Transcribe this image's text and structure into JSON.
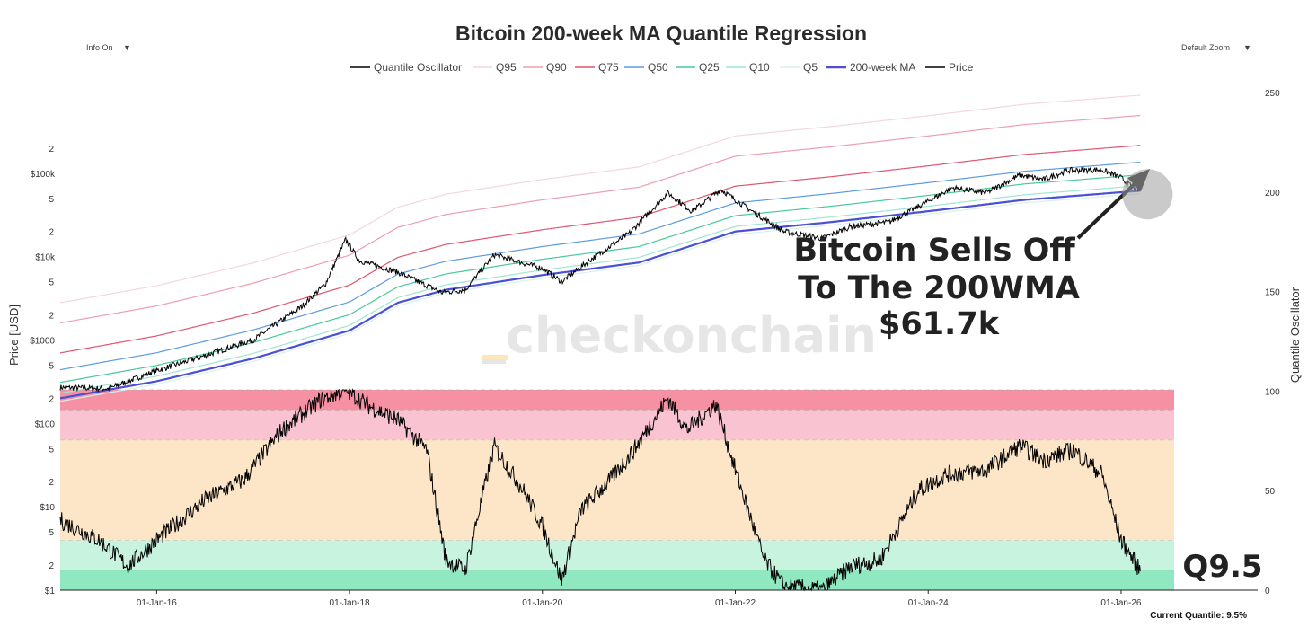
{
  "controls": {
    "info_label": "Info On",
    "zoom_label": "Default Zoom"
  },
  "annotation": {
    "line1": "Bitcoin Sells Off",
    "line2": "To The 200WMA",
    "line3": "$61.7k"
  },
  "watermark": "_checkonchain",
  "current": {
    "quantile_label": "Q9.5",
    "readout": "Current Quantile: 9.5%"
  },
  "colors": {
    "Q95": "#f3d6de",
    "Q90": "#ec9eaf",
    "Q75": "#e0566f",
    "Q50": "#5b9be0",
    "Q25": "#48c99a",
    "Q10": "#9fe6d2",
    "Q5": "#d8f2ea",
    "ma": "#4a4fd6",
    "price": "#000000",
    "zone_top": "#f591a3",
    "zone_high": "#f9c3d1",
    "zone_mid": "#fde6c7",
    "zone_low": "#c8f3df",
    "zone_bottom": "#8fe8bf",
    "highlight": "#9e9e9e"
  },
  "chart_data": {
    "type": "line",
    "title": "Bitcoin 200-week MA Quantile Regression",
    "ylabel": "Price [USD]",
    "y2label": "Quantile Oscillator",
    "yscale": "log",
    "ylim": [
      1,
      1000000
    ],
    "y2lim": [
      0,
      250
    ],
    "x_ticks": [
      "01-Jan-16",
      "01-Jan-18",
      "01-Jan-20",
      "01-Jan-22",
      "01-Jan-24",
      "01-Jan-26"
    ],
    "y_ticks": [
      "$1",
      "2",
      "5",
      "$10",
      "2",
      "5",
      "$100",
      "2",
      "5",
      "$1000",
      "2",
      "5",
      "$10k",
      "2",
      "5",
      "$100k",
      "2"
    ],
    "y2_ticks": [
      "0",
      "50",
      "100",
      "150",
      "200",
      "250"
    ],
    "legend": [
      "Quantile Oscillator",
      "Q95",
      "Q90",
      "Q75",
      "Q50",
      "Q25",
      "Q10",
      "Q5",
      "200-week MA",
      "Price"
    ],
    "oscillator_zones": [
      [
        0,
        10
      ],
      [
        10,
        25
      ],
      [
        25,
        75
      ],
      [
        75,
        90
      ],
      [
        90,
        100
      ]
    ],
    "ma": {
      "x": [
        2015.0,
        2016.0,
        2017.0,
        2018.0,
        2018.5,
        2019.0,
        2020.0,
        2021.0,
        2021.5,
        2022.0,
        2023.0,
        2024.0,
        2025.0,
        2026.2
      ],
      "y": [
        200,
        320,
        600,
        1300,
        2800,
        4000,
        6000,
        8500,
        13000,
        20000,
        26000,
        35000,
        48000,
        61700
      ]
    },
    "band_multipliers": {
      "Q5": 0.92,
      "Q10": 1.15,
      "Q25": 1.55,
      "Q50": 2.2,
      "Q75": 3.5,
      "Q90": 8.0,
      "Q95": 14.0
    },
    "price": {
      "x": [
        2015.0,
        2015.5,
        2016.0,
        2016.5,
        2017.0,
        2017.5,
        2017.75,
        2017.96,
        2018.1,
        2018.5,
        2018.96,
        2019.2,
        2019.5,
        2020.0,
        2020.2,
        2020.5,
        2020.9,
        2021.3,
        2021.55,
        2021.85,
        2022.1,
        2022.5,
        2022.9,
        2023.2,
        2023.6,
        2023.95,
        2024.25,
        2024.6,
        2024.95,
        2025.2,
        2025.45,
        2025.8,
        2026.0,
        2026.1,
        2026.2
      ],
      "y": [
        270,
        260,
        430,
        650,
        1000,
        2500,
        4700,
        16000,
        9000,
        6500,
        3700,
        4000,
        10500,
        7200,
        5000,
        9200,
        19000,
        58000,
        35000,
        64000,
        40000,
        20000,
        16500,
        23000,
        26000,
        43000,
        67000,
        58000,
        95000,
        84000,
        108000,
        110000,
        88000,
        70000,
        61700
      ]
    },
    "oscillator": {
      "x": [
        2015.0,
        2015.4,
        2015.7,
        2016.0,
        2016.5,
        2016.9,
        2017.3,
        2017.7,
        2017.96,
        2018.2,
        2018.5,
        2018.8,
        2019.0,
        2019.2,
        2019.5,
        2019.8,
        2020.0,
        2020.2,
        2020.4,
        2020.7,
        2020.95,
        2021.3,
        2021.5,
        2021.8,
        2022.0,
        2022.3,
        2022.5,
        2022.9,
        2023.2,
        2023.5,
        2023.9,
        2024.2,
        2024.6,
        2024.95,
        2025.2,
        2025.5,
        2025.8,
        2026.0,
        2026.2
      ],
      "y": [
        35,
        25,
        12,
        25,
        45,
        55,
        80,
        95,
        100,
        92,
        85,
        70,
        15,
        10,
        72,
        50,
        32,
        5,
        40,
        55,
        70,
        96,
        80,
        93,
        60,
        15,
        2,
        0,
        12,
        15,
        50,
        58,
        60,
        72,
        65,
        70,
        58,
        25,
        9.5
      ]
    }
  }
}
